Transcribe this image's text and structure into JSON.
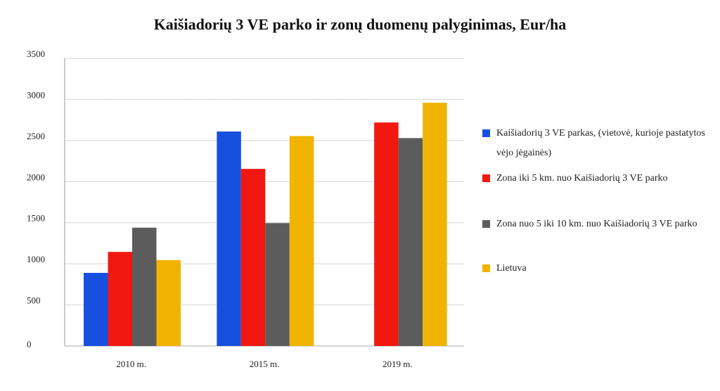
{
  "chart_data": {
    "type": "bar",
    "title": "Kaišiadorių 3 VE parko ir zonų duomenų palyginimas, Eur/ha",
    "categories": [
      "2010 m.",
      "2015 m.",
      "2019 m."
    ],
    "ylim": [
      0,
      3500
    ],
    "yticks": [
      0,
      500,
      1000,
      1500,
      2000,
      2500,
      3000,
      3500
    ],
    "grid": true,
    "legend_position": "right",
    "series": [
      {
        "name": "Kaišiadorių 3 VE parkas, (vietovė, kurioje pastatytos vėjo jėgainės)",
        "color": "#1750e0",
        "values": [
          890,
          2610,
          null
        ]
      },
      {
        "name": "Zona iki 5 km. nuo Kaišiadorių 3 VE parko",
        "color": "#f01810",
        "values": [
          1145,
          2155,
          2720
        ]
      },
      {
        "name": "Zona nuo 5 iki 10 km. nuo Kaišiadorių 3 VE parko",
        "color": "#5c5c5c",
        "values": [
          1440,
          1495,
          2530
        ]
      },
      {
        "name": "Lietuva",
        "color": "#f0b400",
        "values": [
          1045,
          2555,
          2960
        ]
      }
    ]
  }
}
